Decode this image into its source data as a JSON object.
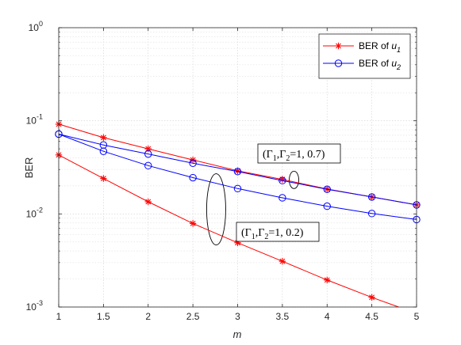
{
  "chart_data": {
    "type": "line",
    "xlabel": "m",
    "ylabel": "BER",
    "xlim": [
      1,
      5
    ],
    "ylim": [
      0.001,
      1
    ],
    "yscale": "log",
    "grid": true,
    "minor_grid": true,
    "legend_position": "top-right",
    "x_ticks": [
      "1",
      "1.5",
      "2",
      "2.5",
      "3",
      "3.5",
      "4",
      "4.5",
      "5"
    ],
    "y_ticks": [
      {
        "base": "10",
        "exp": "0"
      },
      {
        "base": "10",
        "exp": "-1"
      },
      {
        "base": "10",
        "exp": "-2"
      },
      {
        "base": "10",
        "exp": "-3"
      }
    ],
    "legend": [
      {
        "prefix": "BER of ",
        "var": "u",
        "sub": "1",
        "color": "#ff0000",
        "marker": "asterisk"
      },
      {
        "prefix": "BER of ",
        "var": "u",
        "sub": "2",
        "color": "#0000ff",
        "marker": "circle"
      }
    ],
    "series": [
      {
        "group": "0.7",
        "legend": 0,
        "color": "#ff0000",
        "marker": "asterisk",
        "x": [
          1,
          1.5,
          2,
          2.5,
          3,
          3.5,
          4,
          4.5,
          5
        ],
        "y": [
          0.092,
          0.066,
          0.05,
          0.038,
          0.029,
          0.0235,
          0.0185,
          0.0152,
          0.0125
        ]
      },
      {
        "group": "0.7",
        "legend": 1,
        "color": "#0000ff",
        "marker": "circle",
        "x": [
          1,
          1.5,
          2,
          2.5,
          3,
          3.5,
          4,
          4.5,
          5
        ],
        "y": [
          0.072,
          0.055,
          0.044,
          0.035,
          0.0285,
          0.0228,
          0.0184,
          0.0152,
          0.0125
        ]
      },
      {
        "group": "0.2",
        "color": "#ff0000",
        "marker": "asterisk",
        "x": [
          1,
          1.5,
          2,
          2.5,
          3,
          3.5,
          4,
          4.5,
          4.8
        ],
        "y": [
          0.043,
          0.024,
          0.0135,
          0.0079,
          0.0049,
          0.0031,
          0.00195,
          0.00127,
          0.001
        ]
      },
      {
        "group": "0.2",
        "color": "#0000ff",
        "marker": "circle",
        "x": [
          1,
          1.5,
          2,
          2.5,
          3,
          3.5,
          4,
          4.5,
          5
        ],
        "y": [
          0.072,
          0.047,
          0.033,
          0.0245,
          0.0187,
          0.0149,
          0.0121,
          0.0101,
          0.0087
        ]
      }
    ],
    "annotations": [
      {
        "text_parts": [
          "(Γ",
          "1",
          ",Γ",
          "2",
          "=1, 0.7)"
        ]
      },
      {
        "text_parts": [
          "(Γ",
          "1",
          ",Γ",
          "2",
          "=1, 0.2)"
        ]
      }
    ]
  }
}
